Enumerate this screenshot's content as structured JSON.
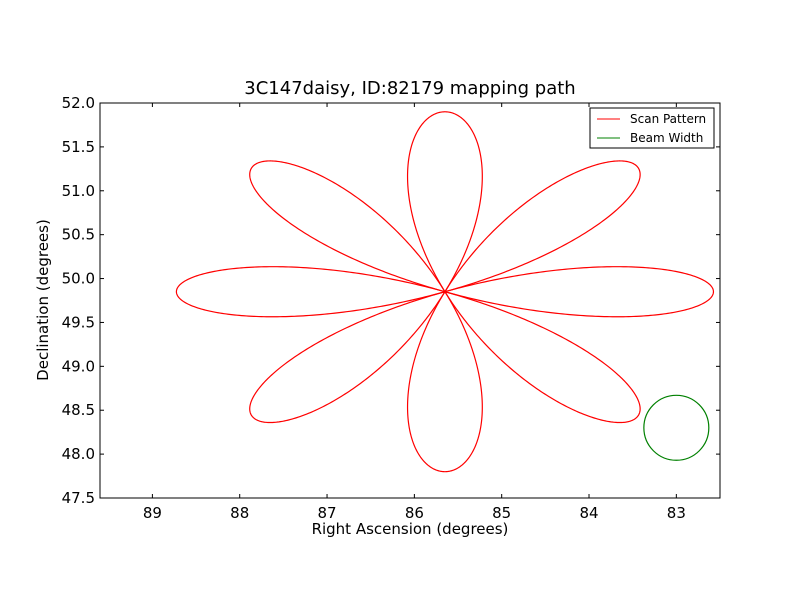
{
  "chart_data": {
    "type": "line",
    "title": "3C147daisy, ID:82179 mapping path",
    "xlabel": "Right Ascension (degrees)",
    "ylabel": "Declination (degrees)",
    "xlim": [
      89.6,
      82.5
    ],
    "ylim": [
      47.5,
      52.0
    ],
    "x_inverted": true,
    "x_ticks": [
      {
        "value": 89,
        "label": "89"
      },
      {
        "value": 88,
        "label": "88"
      },
      {
        "value": 87,
        "label": "87"
      },
      {
        "value": 86,
        "label": "86"
      },
      {
        "value": 85,
        "label": "85"
      },
      {
        "value": 84,
        "label": "84"
      },
      {
        "value": 83,
        "label": "83"
      }
    ],
    "y_ticks": [
      {
        "value": 47.5,
        "label": "47.5"
      },
      {
        "value": 48.0,
        "label": "48.0"
      },
      {
        "value": 48.5,
        "label": "48.5"
      },
      {
        "value": 49.0,
        "label": "49.0"
      },
      {
        "value": 49.5,
        "label": "49.5"
      },
      {
        "value": 50.0,
        "label": "50.0"
      },
      {
        "value": 50.5,
        "label": "50.5"
      },
      {
        "value": 51.0,
        "label": "51.0"
      },
      {
        "value": 51.5,
        "label": "51.5"
      },
      {
        "value": 52.0,
        "label": "52.0"
      }
    ],
    "grid": false,
    "legend_position": "top-right",
    "series": [
      {
        "name": "Scan Pattern",
        "color": "#ff0000",
        "kind": "daisy",
        "center": [
          85.65,
          49.85
        ],
        "radius_deg": 2.05,
        "radial_periods": 4,
        "petal_count": 8,
        "petal_angles_deg": [
          0,
          45,
          90,
          135,
          180,
          225,
          270,
          315
        ],
        "ra_stretch": 1.5
      },
      {
        "name": "Beam Width",
        "color": "#008000",
        "kind": "circle",
        "center": [
          83.0,
          48.3
        ],
        "radius_dec": 0.37
      }
    ],
    "legend": [
      {
        "label": "Scan Pattern",
        "color": "#ff0000"
      },
      {
        "label": "Beam Width",
        "color": "#008000"
      }
    ]
  }
}
